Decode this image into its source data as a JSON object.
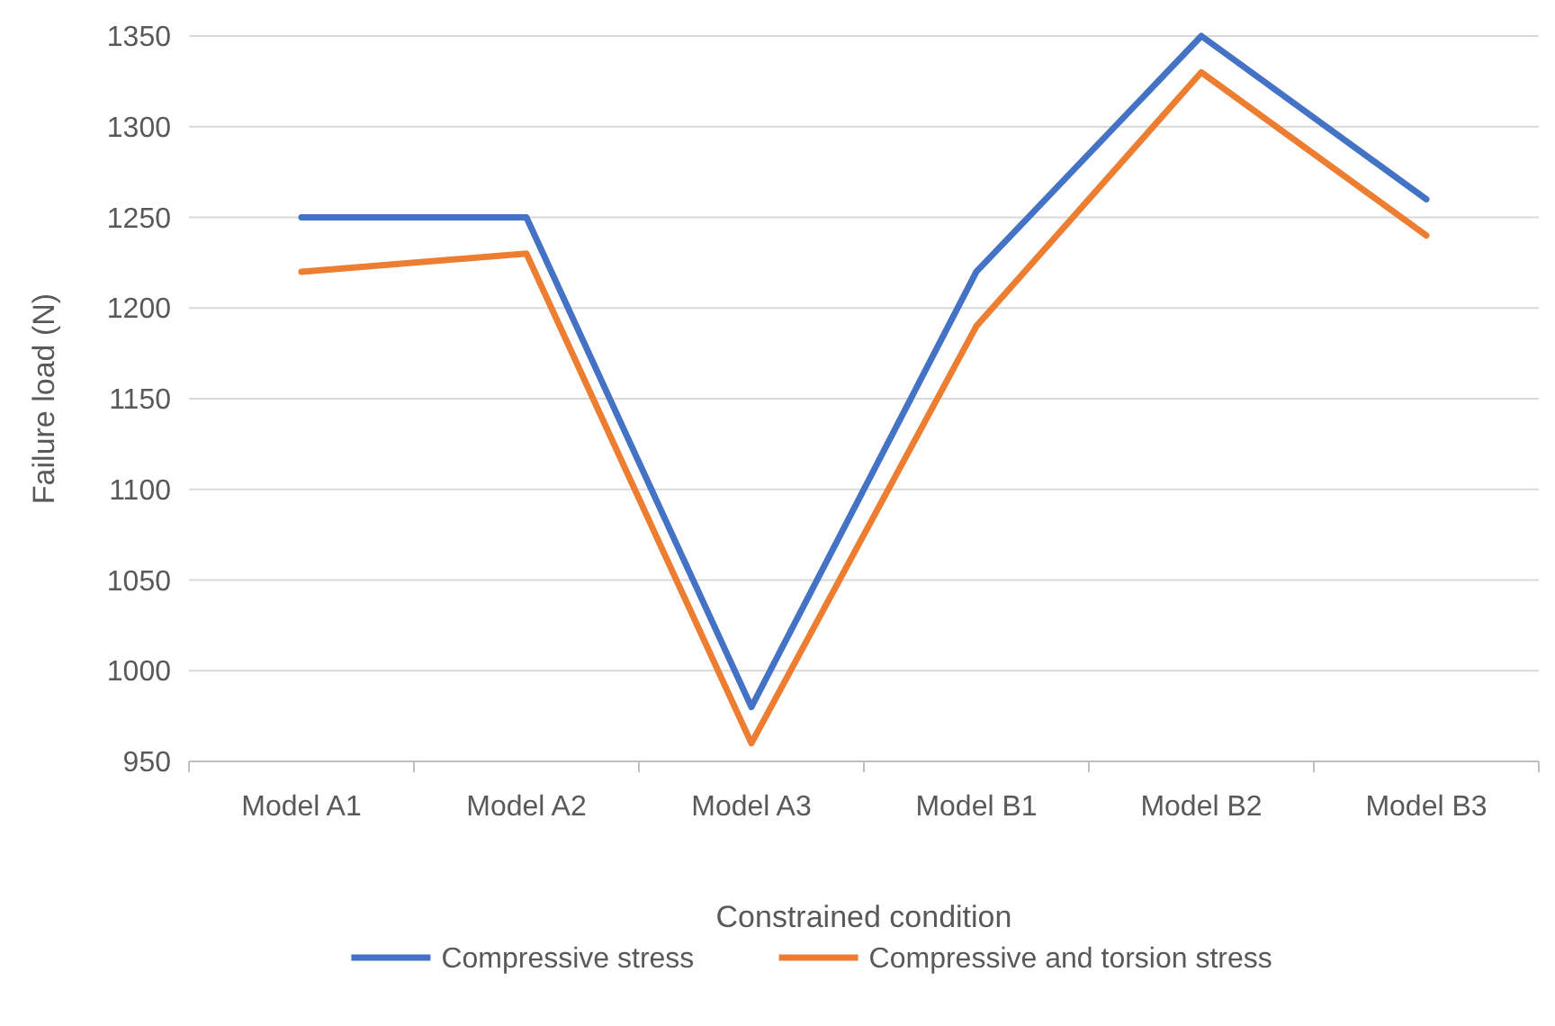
{
  "chart_data": {
    "type": "line",
    "xlabel": "Constrained condition",
    "ylabel": "Failure load (N)",
    "categories": [
      "Model A1",
      "Model A2",
      "Model A3",
      "Model B1",
      "Model B2",
      "Model B3"
    ],
    "series": [
      {
        "name": "Compressive stress",
        "color": "#4472c4",
        "values": [
          1250,
          1250,
          980,
          1220,
          1350,
          1260
        ]
      },
      {
        "name": "Compressive and torsion stress",
        "color": "#ed7d31",
        "values": [
          1220,
          1230,
          960,
          1190,
          1330,
          1240
        ]
      }
    ],
    "ylim": [
      950,
      1350
    ],
    "yticks": [
      950,
      1000,
      1050,
      1100,
      1150,
      1200,
      1250,
      1300,
      1350
    ],
    "grid": "y",
    "legend": "bottom",
    "marker": "none",
    "line_style": "solid"
  }
}
